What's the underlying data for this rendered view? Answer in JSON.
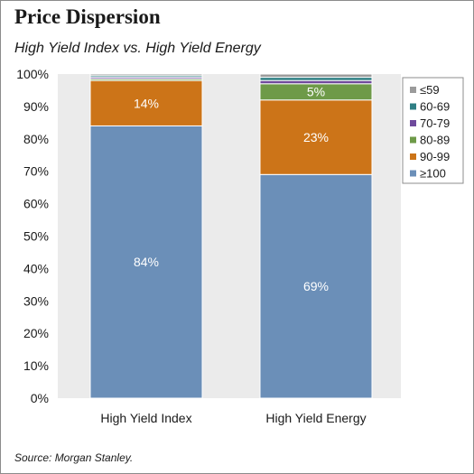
{
  "chart_data": {
    "type": "bar",
    "stacked": true,
    "title": "Price Dispersion",
    "subtitle": "High Yield Index vs. High Yield Energy",
    "source": "Source: Morgan Stanley.",
    "categories": [
      "High Yield Index",
      "High Yield Energy"
    ],
    "series": [
      {
        "name": "≥100",
        "color": "#6b8fb8",
        "values": [
          84,
          69
        ],
        "labels": [
          "84%",
          "69%"
        ]
      },
      {
        "name": "90-99",
        "color": "#cc7418",
        "values": [
          14,
          23
        ],
        "labels": [
          "14%",
          "23%"
        ]
      },
      {
        "name": "80-89",
        "color": "#6e9a48",
        "values": [
          0.5,
          5
        ],
        "labels": [
          "",
          "5%"
        ]
      },
      {
        "name": "70-79",
        "color": "#6f4a9c",
        "values": [
          0.5,
          1
        ],
        "labels": [
          "",
          ""
        ]
      },
      {
        "name": "60-69",
        "color": "#2f7f84",
        "values": [
          0.5,
          1
        ],
        "labels": [
          "",
          ""
        ]
      },
      {
        "name": "≤59",
        "color": "#9b9b9b",
        "values": [
          0.5,
          1
        ],
        "labels": [
          "",
          ""
        ]
      }
    ],
    "legend_order": [
      "≤59",
      "60-69",
      "70-79",
      "80-89",
      "90-99",
      "≥100"
    ],
    "ylim": [
      0,
      100
    ],
    "yticks": [
      "0%",
      "10%",
      "20%",
      "30%",
      "40%",
      "50%",
      "60%",
      "70%",
      "80%",
      "90%",
      "100%"
    ],
    "grid": false,
    "legend_position": "right",
    "plot_background": "#ebebeb"
  }
}
